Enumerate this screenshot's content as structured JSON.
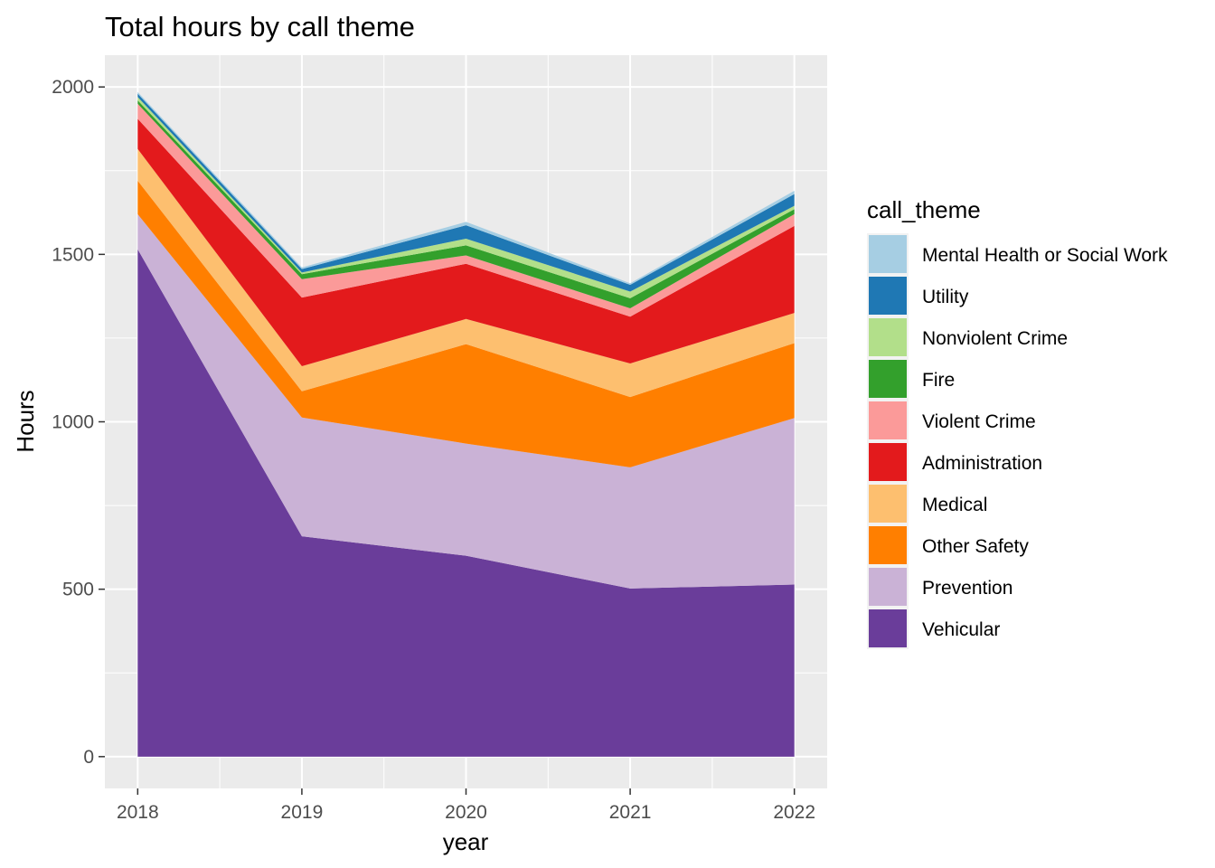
{
  "chart_data": {
    "type": "area",
    "stacked": true,
    "title": "Total hours by call theme",
    "xlabel": "year",
    "ylabel": "Hours",
    "x": [
      2018,
      2019,
      2020,
      2021,
      2022
    ],
    "x_ticks": [
      "2018",
      "2019",
      "2020",
      "2021",
      "2022"
    ],
    "y_ticks": [
      "0",
      "500",
      "1000",
      "1500",
      "2000"
    ],
    "ylim": [
      -95,
      2095
    ],
    "xlim": [
      2017.8,
      2022.2
    ],
    "grid": true,
    "legend_title": "call_theme",
    "legend_position": "right",
    "series": [
      {
        "name": "Vehicular",
        "color": "#6A3D9A",
        "values": [
          1515,
          658,
          600,
          502,
          514
        ]
      },
      {
        "name": "Prevention",
        "color": "#CAB2D6",
        "values": [
          105,
          355,
          335,
          362,
          497
        ]
      },
      {
        "name": "Other Safety",
        "color": "#FF7F00",
        "values": [
          100,
          78,
          297,
          210,
          224
        ]
      },
      {
        "name": "Medical",
        "color": "#FDBF6F",
        "values": [
          95,
          75,
          75,
          100,
          90
        ]
      },
      {
        "name": "Administration",
        "color": "#E31A1C",
        "values": [
          90,
          205,
          165,
          140,
          260
        ]
      },
      {
        "name": "Violent Crime",
        "color": "#FB9A99",
        "values": [
          45,
          55,
          25,
          25,
          35
        ]
      },
      {
        "name": "Fire",
        "color": "#33A02C",
        "values": [
          10,
          15,
          30,
          30,
          15
        ]
      },
      {
        "name": "Nonviolent Crime",
        "color": "#B2DF8A",
        "values": [
          10,
          5,
          20,
          20,
          10
        ]
      },
      {
        "name": "Utility",
        "color": "#1F78B4",
        "values": [
          10,
          10,
          40,
          20,
          35
        ]
      },
      {
        "name": "Mental Health or Social Work",
        "color": "#A6CEE3",
        "values": [
          5,
          5,
          10,
          5,
          10
        ]
      }
    ]
  }
}
